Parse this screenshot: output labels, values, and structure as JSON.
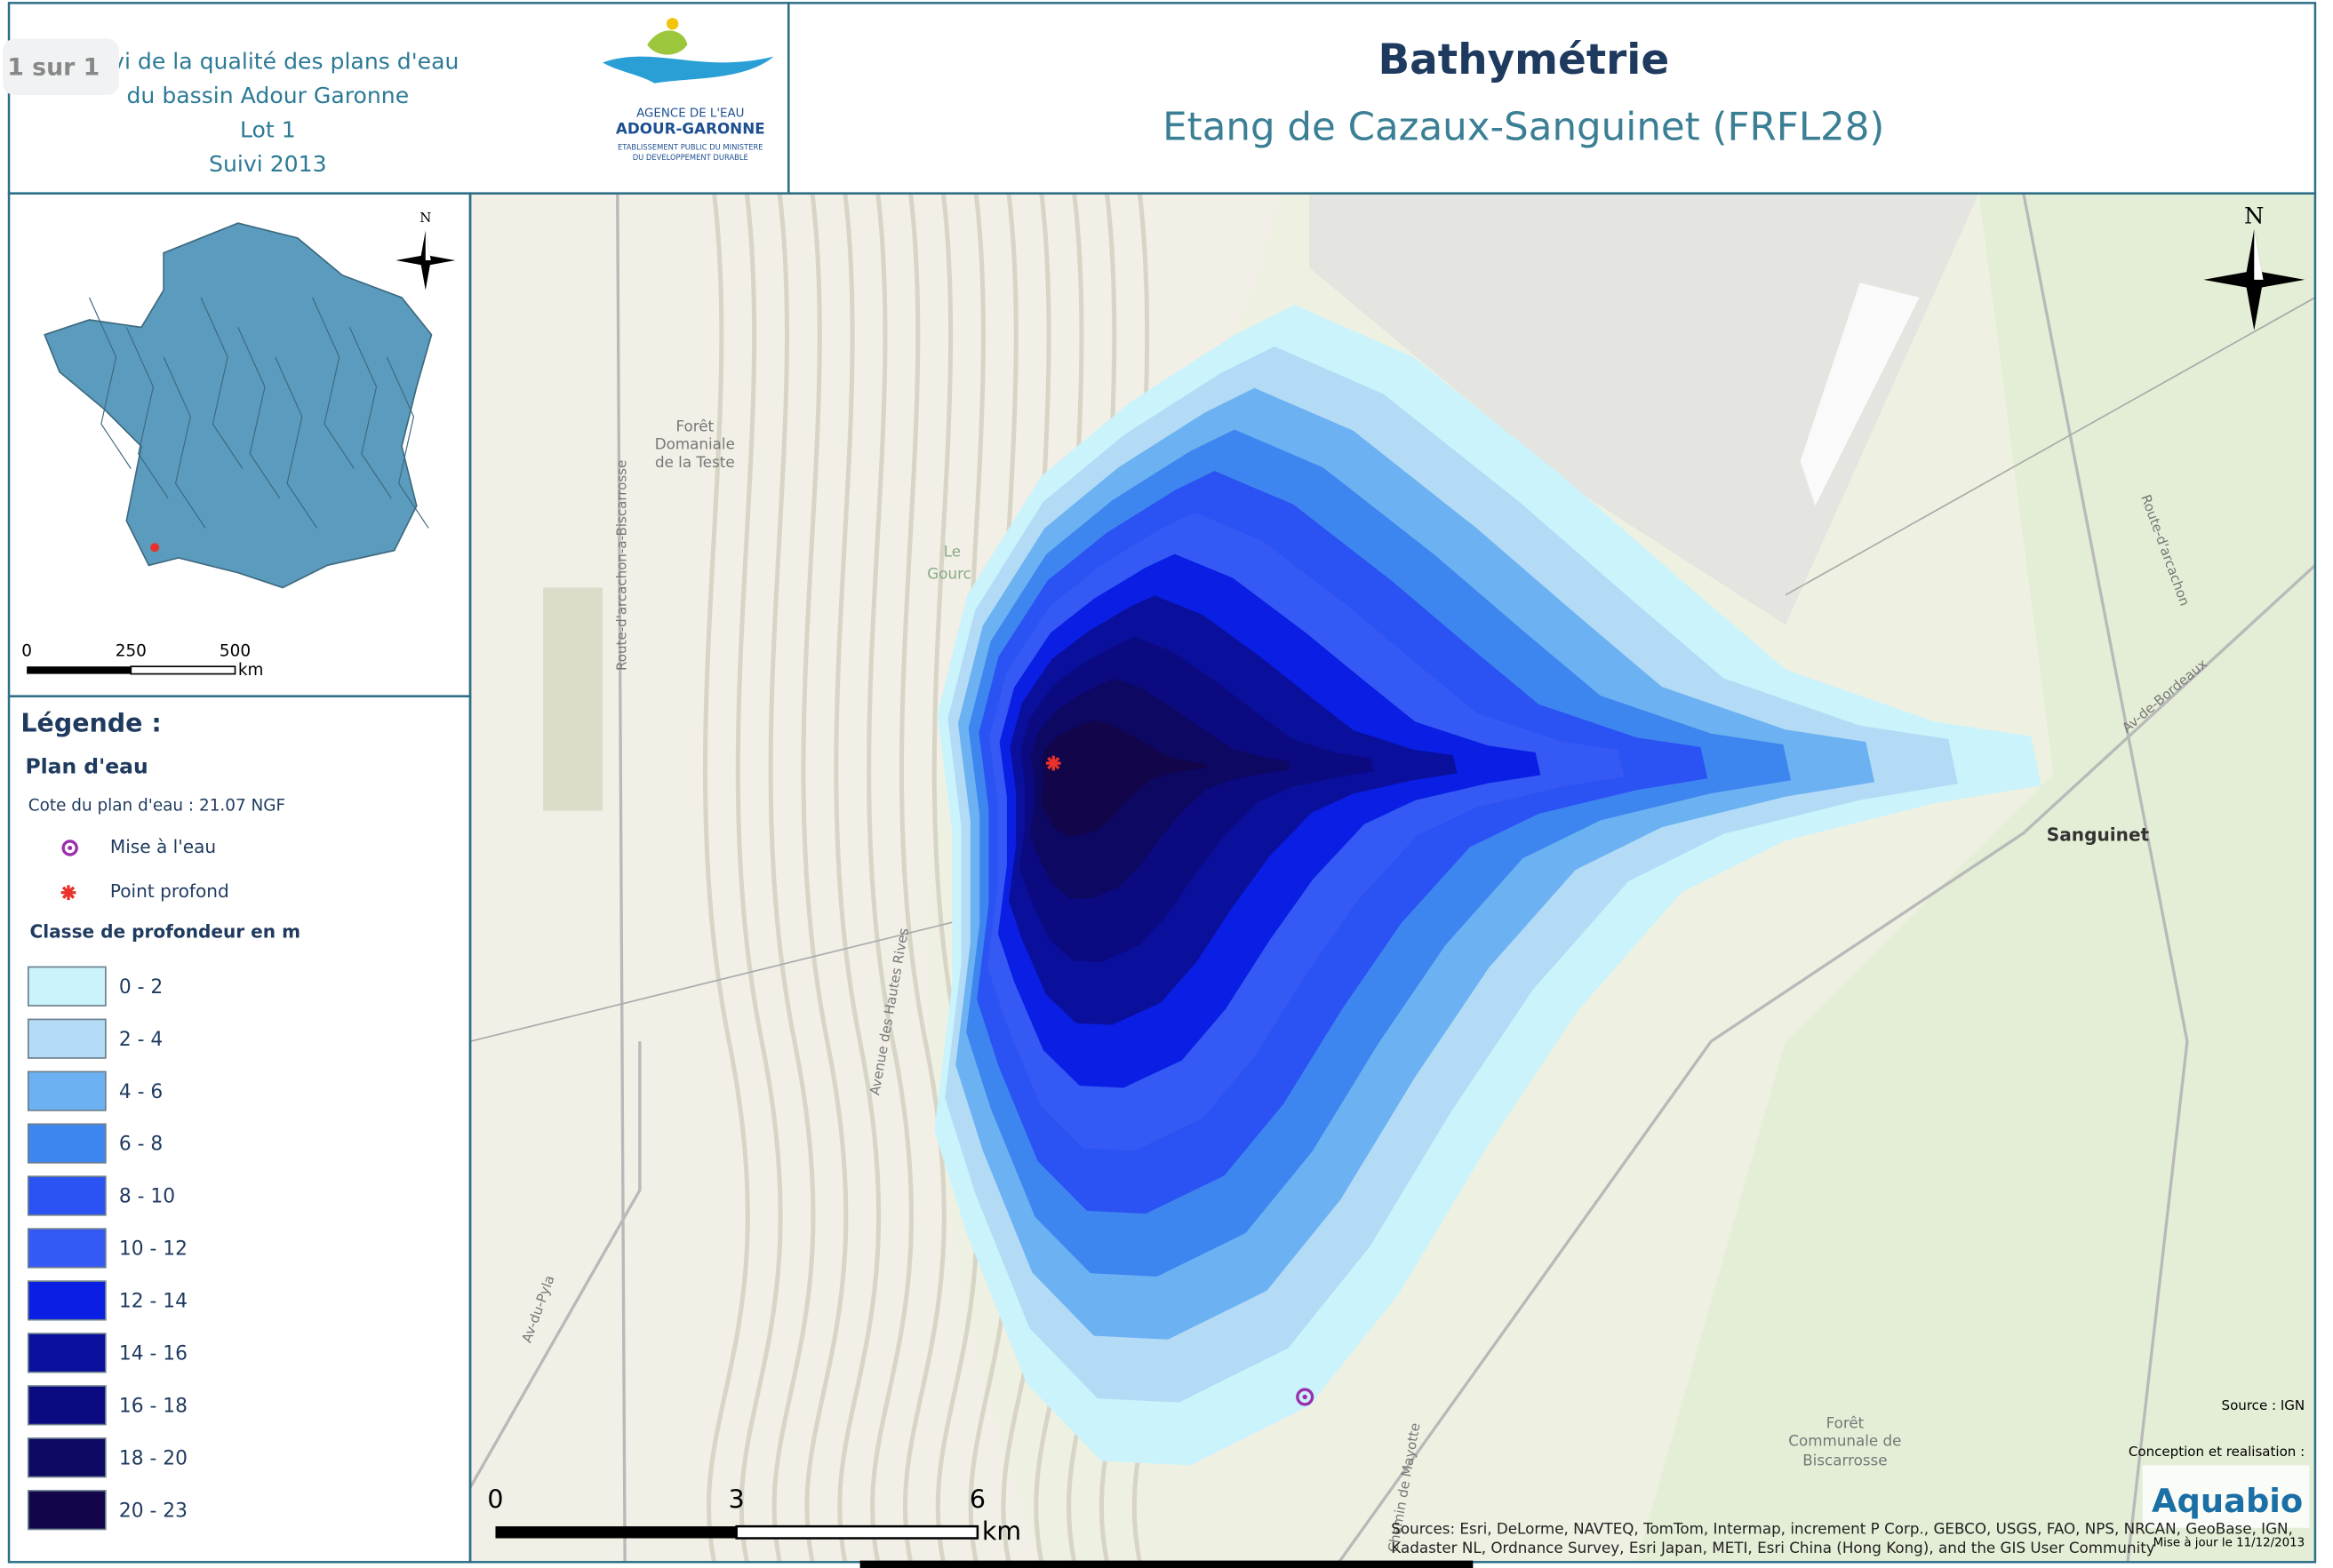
{
  "page_badge": "1 sur 1",
  "header": {
    "lines": [
      "Suivi de la qualité des plans d'eau",
      "du bassin Adour Garonne",
      "Lot 1",
      "Suivi 2013"
    ],
    "logo": {
      "lines": [
        "AGENCE DE L'EAU",
        "ADOUR-GARONNE",
        "ETABLISSEMENT PUBLIC DU MINISTERE",
        "DU DEVELOPPEMENT DURABLE"
      ]
    },
    "title": "Bathymétrie",
    "subtitle": "Etang de Cazaux-Sanguinet (FRFL28)"
  },
  "inset": {
    "north": "N",
    "scale": {
      "labels": [
        "0",
        "250",
        "500"
      ],
      "unit": "km"
    }
  },
  "legend": {
    "title": "Légende :",
    "section": "Plan d'eau",
    "water_level": "Cote du plan d'eau : 21.07 NGF",
    "symbols": [
      {
        "label": "Mise à l'eau",
        "color": "#9b2fae"
      },
      {
        "label": "Point profond",
        "color": "#e8322b"
      }
    ],
    "classes_title": "Classe de profondeur en m",
    "classes": [
      {
        "label": "0 - 2",
        "color": "#cbf3fb"
      },
      {
        "label": "2 - 4",
        "color": "#b3dbf6"
      },
      {
        "label": "4 - 6",
        "color": "#6cb2f2"
      },
      {
        "label": "6 - 8",
        "color": "#3e86ef"
      },
      {
        "label": "8 - 10",
        "color": "#2b52f2"
      },
      {
        "label": "10 - 12",
        "color": "#3559f4"
      },
      {
        "label": "12 - 14",
        "color": "#0a1ee4"
      },
      {
        "label": "14 - 16",
        "color": "#0a0f9c"
      },
      {
        "label": "16 - 18",
        "color": "#0c0a80"
      },
      {
        "label": "18 - 20",
        "color": "#0d0862"
      },
      {
        "label": "20 - 23",
        "color": "#12054a"
      }
    ]
  },
  "map": {
    "north": "N",
    "scale": {
      "labels": [
        "0",
        "3",
        "6"
      ],
      "unit": "km"
    },
    "places": [
      "Sanguinet",
      "Forêt",
      "Domaniale",
      "de la Teste",
      "Le",
      "Gourc",
      "Forêt",
      "Communale de",
      "Biscarrosse",
      "Route-d'arcachon-a-Biscarrosse",
      "Avenue des Hautes Rives",
      "Av-de-Bordeaux",
      "Route-d'arcachon",
      "Av-du-Pyla",
      "Chemin de Mayotte"
    ],
    "source": "Source : IGN",
    "credit": "Conception et realisation :",
    "brand": "Aquabio",
    "updated": "Mise à jour le 11/12/2013",
    "sources": [
      "Sources: Esri, DeLorme, NAVTEQ, TomTom, Intermap, increment P Corp., GEBCO, USGS, FAO, NPS, NRCAN, GeoBase, IGN,",
      "Kadaster NL, Ordnance Survey, Esri Japan, METI, Esri China (Hong Kong), and the GIS User Community"
    ]
  }
}
